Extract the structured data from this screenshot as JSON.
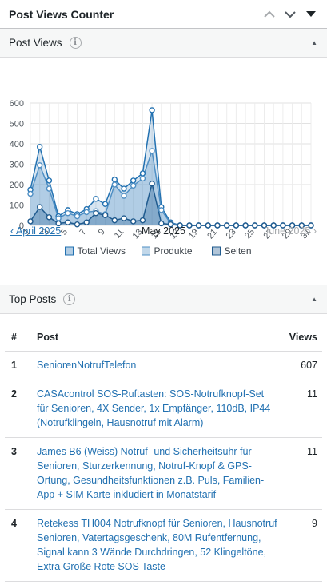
{
  "widget": {
    "title": "Post Views Counter"
  },
  "post_views": {
    "title": "Post Views",
    "info_icon": "info-icon"
  },
  "month_nav": {
    "prev": "‹ April 2025",
    "current": "May 2025",
    "next": "June 2025 ›"
  },
  "top_posts": {
    "title": "Top Posts",
    "columns": {
      "num": "#",
      "post": "Post",
      "views": "Views"
    },
    "rows": [
      {
        "num": "1",
        "title": "SeniorenNotrufTelefon",
        "views": "607"
      },
      {
        "num": "2",
        "title": "CASAcontrol SOS-Ruftasten: SOS-Notrufknopf-Set für Senioren, 4X Sender, 1x Empfänger, 110dB, IP44 (Notrufklingeln, Hausnotruf mit Alarm)",
        "views": "11"
      },
      {
        "num": "3",
        "title": "James B6 (Weiss) Notruf- und Sicherheitsuhr für Senioren, Sturzerkennung, Notruf-Knopf & GPS-Ortung, Gesundheitsfunktionen z.B. Puls, Familien-App + SIM Karte inkludiert in Monatstarif",
        "views": "11"
      },
      {
        "num": "4",
        "title": "Retekess TH004 Notrufknopf für Senioren, Hausnotruf Senioren, Vatertagsgeschenk, 80M Rufentfernung, Signal kann 3 Wände Durchdringen, 52 Klingeltöne, Extra Große Rote SOS Taste",
        "views": "9"
      }
    ]
  },
  "chart_data": {
    "type": "area",
    "x": [
      1,
      2,
      3,
      4,
      5,
      6,
      7,
      8,
      9,
      10,
      11,
      12,
      13,
      14,
      15,
      16,
      17,
      18,
      19,
      20,
      21,
      22,
      23,
      24,
      25,
      26,
      27,
      28,
      29,
      30,
      31
    ],
    "xticks": [
      "1",
      "3",
      "5",
      "7",
      "9",
      "11",
      "13",
      "15",
      "17",
      "19",
      "21",
      "23",
      "25",
      "27",
      "29",
      "31"
    ],
    "ylim": [
      0,
      600
    ],
    "yticks": [
      "0",
      "100",
      "200",
      "300",
      "400",
      "500",
      "600"
    ],
    "grid": true,
    "legend_position": "bottom",
    "series": [
      {
        "name": "Total Views",
        "color": "#2271b1",
        "values": [
          175,
          385,
          220,
          45,
          75,
          55,
          80,
          130,
          105,
          225,
          180,
          220,
          255,
          565,
          90,
          15,
          0,
          0,
          0,
          0,
          0,
          0,
          0,
          0,
          0,
          0,
          0,
          0,
          0,
          0,
          0
        ]
      },
      {
        "name": "Produkte",
        "color": "#4f8fc4",
        "values": [
          155,
          295,
          180,
          35,
          60,
          45,
          65,
          70,
          55,
          200,
          145,
          195,
          230,
          365,
          75,
          10,
          0,
          0,
          0,
          0,
          0,
          0,
          0,
          0,
          0,
          0,
          0,
          0,
          0,
          0,
          0
        ]
      },
      {
        "name": "Seiten",
        "color": "#1f5a8e",
        "values": [
          20,
          90,
          40,
          10,
          15,
          5,
          15,
          60,
          50,
          25,
          35,
          20,
          25,
          205,
          10,
          5,
          0,
          0,
          0,
          0,
          0,
          0,
          0,
          0,
          0,
          0,
          0,
          0,
          0,
          0,
          0
        ]
      }
    ]
  }
}
